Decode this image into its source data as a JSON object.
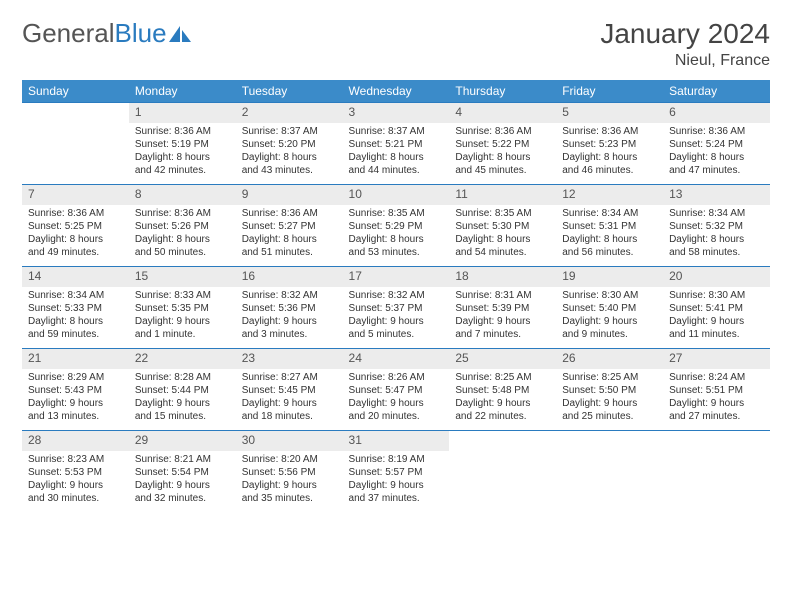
{
  "header": {
    "logo_text_1": "General",
    "logo_text_2": "Blue",
    "month_title": "January 2024",
    "location": "Nieul, France"
  },
  "styling": {
    "header_bg": "#3b8bc9",
    "header_fg": "#ffffff",
    "daynum_bg": "#ececec",
    "border_color": "#2a7bbf",
    "body_font_size": 10,
    "header_font_size": 12,
    "title_font_size": 28
  },
  "weekdays": [
    "Sunday",
    "Monday",
    "Tuesday",
    "Wednesday",
    "Thursday",
    "Friday",
    "Saturday"
  ],
  "weeks": [
    {
      "nums": [
        "",
        "1",
        "2",
        "3",
        "4",
        "5",
        "6"
      ],
      "days": [
        null,
        {
          "sunrise": "Sunrise: 8:36 AM",
          "sunset": "Sunset: 5:19 PM",
          "d1": "Daylight: 8 hours",
          "d2": "and 42 minutes."
        },
        {
          "sunrise": "Sunrise: 8:37 AM",
          "sunset": "Sunset: 5:20 PM",
          "d1": "Daylight: 8 hours",
          "d2": "and 43 minutes."
        },
        {
          "sunrise": "Sunrise: 8:37 AM",
          "sunset": "Sunset: 5:21 PM",
          "d1": "Daylight: 8 hours",
          "d2": "and 44 minutes."
        },
        {
          "sunrise": "Sunrise: 8:36 AM",
          "sunset": "Sunset: 5:22 PM",
          "d1": "Daylight: 8 hours",
          "d2": "and 45 minutes."
        },
        {
          "sunrise": "Sunrise: 8:36 AM",
          "sunset": "Sunset: 5:23 PM",
          "d1": "Daylight: 8 hours",
          "d2": "and 46 minutes."
        },
        {
          "sunrise": "Sunrise: 8:36 AM",
          "sunset": "Sunset: 5:24 PM",
          "d1": "Daylight: 8 hours",
          "d2": "and 47 minutes."
        }
      ]
    },
    {
      "nums": [
        "7",
        "8",
        "9",
        "10",
        "11",
        "12",
        "13"
      ],
      "days": [
        {
          "sunrise": "Sunrise: 8:36 AM",
          "sunset": "Sunset: 5:25 PM",
          "d1": "Daylight: 8 hours",
          "d2": "and 49 minutes."
        },
        {
          "sunrise": "Sunrise: 8:36 AM",
          "sunset": "Sunset: 5:26 PM",
          "d1": "Daylight: 8 hours",
          "d2": "and 50 minutes."
        },
        {
          "sunrise": "Sunrise: 8:36 AM",
          "sunset": "Sunset: 5:27 PM",
          "d1": "Daylight: 8 hours",
          "d2": "and 51 minutes."
        },
        {
          "sunrise": "Sunrise: 8:35 AM",
          "sunset": "Sunset: 5:29 PM",
          "d1": "Daylight: 8 hours",
          "d2": "and 53 minutes."
        },
        {
          "sunrise": "Sunrise: 8:35 AM",
          "sunset": "Sunset: 5:30 PM",
          "d1": "Daylight: 8 hours",
          "d2": "and 54 minutes."
        },
        {
          "sunrise": "Sunrise: 8:34 AM",
          "sunset": "Sunset: 5:31 PM",
          "d1": "Daylight: 8 hours",
          "d2": "and 56 minutes."
        },
        {
          "sunrise": "Sunrise: 8:34 AM",
          "sunset": "Sunset: 5:32 PM",
          "d1": "Daylight: 8 hours",
          "d2": "and 58 minutes."
        }
      ]
    },
    {
      "nums": [
        "14",
        "15",
        "16",
        "17",
        "18",
        "19",
        "20"
      ],
      "days": [
        {
          "sunrise": "Sunrise: 8:34 AM",
          "sunset": "Sunset: 5:33 PM",
          "d1": "Daylight: 8 hours",
          "d2": "and 59 minutes."
        },
        {
          "sunrise": "Sunrise: 8:33 AM",
          "sunset": "Sunset: 5:35 PM",
          "d1": "Daylight: 9 hours",
          "d2": "and 1 minute."
        },
        {
          "sunrise": "Sunrise: 8:32 AM",
          "sunset": "Sunset: 5:36 PM",
          "d1": "Daylight: 9 hours",
          "d2": "and 3 minutes."
        },
        {
          "sunrise": "Sunrise: 8:32 AM",
          "sunset": "Sunset: 5:37 PM",
          "d1": "Daylight: 9 hours",
          "d2": "and 5 minutes."
        },
        {
          "sunrise": "Sunrise: 8:31 AM",
          "sunset": "Sunset: 5:39 PM",
          "d1": "Daylight: 9 hours",
          "d2": "and 7 minutes."
        },
        {
          "sunrise": "Sunrise: 8:30 AM",
          "sunset": "Sunset: 5:40 PM",
          "d1": "Daylight: 9 hours",
          "d2": "and 9 minutes."
        },
        {
          "sunrise": "Sunrise: 8:30 AM",
          "sunset": "Sunset: 5:41 PM",
          "d1": "Daylight: 9 hours",
          "d2": "and 11 minutes."
        }
      ]
    },
    {
      "nums": [
        "21",
        "22",
        "23",
        "24",
        "25",
        "26",
        "27"
      ],
      "days": [
        {
          "sunrise": "Sunrise: 8:29 AM",
          "sunset": "Sunset: 5:43 PM",
          "d1": "Daylight: 9 hours",
          "d2": "and 13 minutes."
        },
        {
          "sunrise": "Sunrise: 8:28 AM",
          "sunset": "Sunset: 5:44 PM",
          "d1": "Daylight: 9 hours",
          "d2": "and 15 minutes."
        },
        {
          "sunrise": "Sunrise: 8:27 AM",
          "sunset": "Sunset: 5:45 PM",
          "d1": "Daylight: 9 hours",
          "d2": "and 18 minutes."
        },
        {
          "sunrise": "Sunrise: 8:26 AM",
          "sunset": "Sunset: 5:47 PM",
          "d1": "Daylight: 9 hours",
          "d2": "and 20 minutes."
        },
        {
          "sunrise": "Sunrise: 8:25 AM",
          "sunset": "Sunset: 5:48 PM",
          "d1": "Daylight: 9 hours",
          "d2": "and 22 minutes."
        },
        {
          "sunrise": "Sunrise: 8:25 AM",
          "sunset": "Sunset: 5:50 PM",
          "d1": "Daylight: 9 hours",
          "d2": "and 25 minutes."
        },
        {
          "sunrise": "Sunrise: 8:24 AM",
          "sunset": "Sunset: 5:51 PM",
          "d1": "Daylight: 9 hours",
          "d2": "and 27 minutes."
        }
      ]
    },
    {
      "nums": [
        "28",
        "29",
        "30",
        "31",
        "",
        "",
        ""
      ],
      "days": [
        {
          "sunrise": "Sunrise: 8:23 AM",
          "sunset": "Sunset: 5:53 PM",
          "d1": "Daylight: 9 hours",
          "d2": "and 30 minutes."
        },
        {
          "sunrise": "Sunrise: 8:21 AM",
          "sunset": "Sunset: 5:54 PM",
          "d1": "Daylight: 9 hours",
          "d2": "and 32 minutes."
        },
        {
          "sunrise": "Sunrise: 8:20 AM",
          "sunset": "Sunset: 5:56 PM",
          "d1": "Daylight: 9 hours",
          "d2": "and 35 minutes."
        },
        {
          "sunrise": "Sunrise: 8:19 AM",
          "sunset": "Sunset: 5:57 PM",
          "d1": "Daylight: 9 hours",
          "d2": "and 37 minutes."
        },
        null,
        null,
        null
      ]
    }
  ]
}
